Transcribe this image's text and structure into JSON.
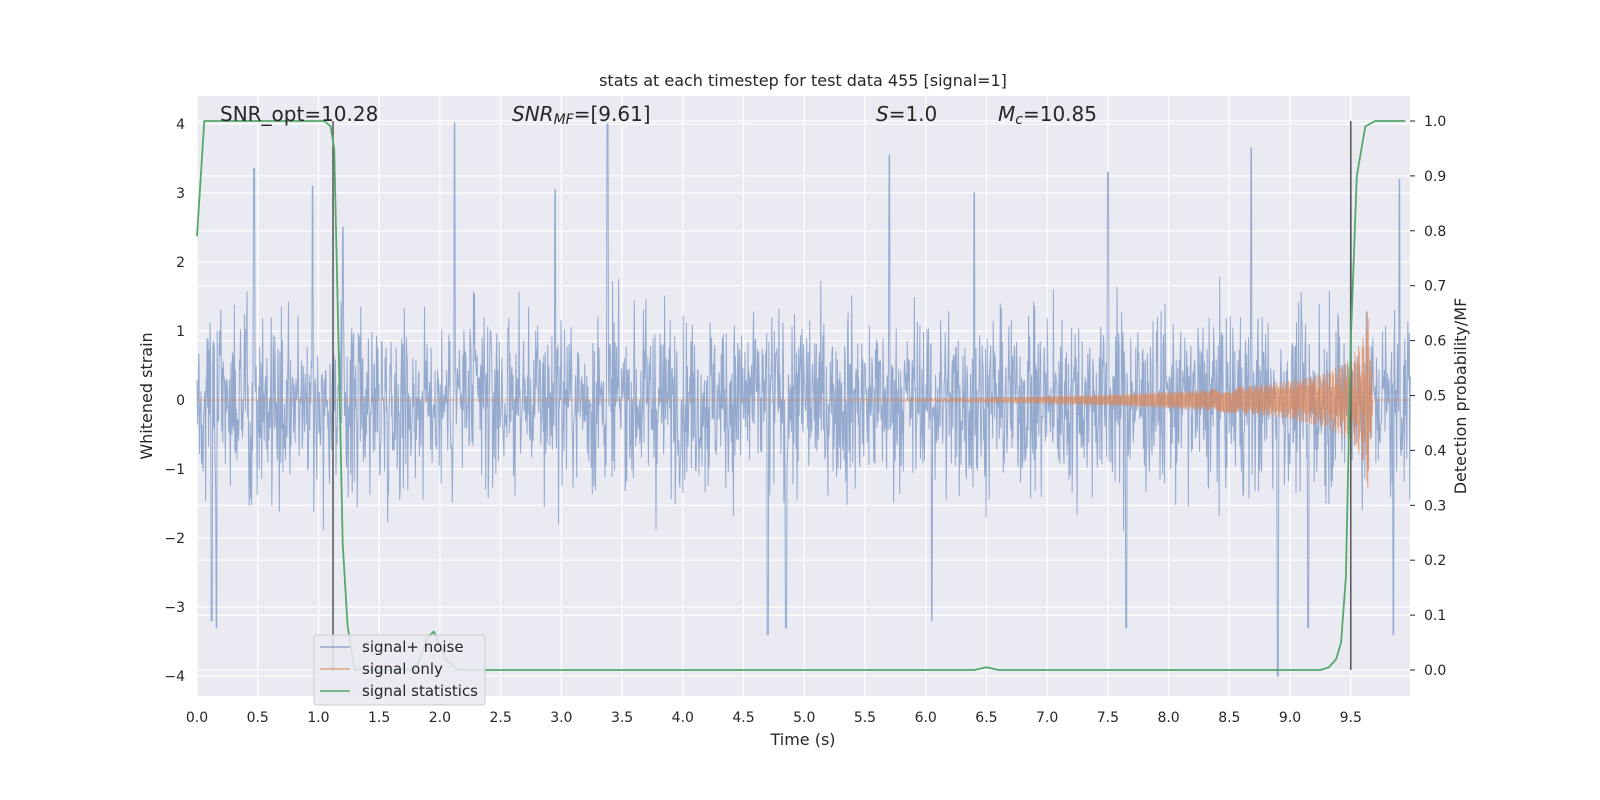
{
  "chart_data": {
    "type": "line",
    "title": "stats at each timestep for test data 455 [signal=1]",
    "xlabel": "Time (s)",
    "ylabel_left": "Whitened strain",
    "ylabel_right": "Detection probability/MF",
    "xlim": [
      0.0,
      10.0
    ],
    "ylim_left": [
      -4.3,
      4.4
    ],
    "ylim_right": [
      0.0,
      1.0
    ],
    "x_ticks": [
      "0.0",
      "0.5",
      "1.0",
      "1.5",
      "2.0",
      "2.5",
      "3.0",
      "3.5",
      "4.0",
      "4.5",
      "5.0",
      "5.5",
      "6.0",
      "6.5",
      "7.0",
      "7.5",
      "8.0",
      "8.5",
      "9.0",
      "9.5"
    ],
    "y_ticks_left": [
      "4",
      "3",
      "2",
      "1",
      "0",
      "−1",
      "−2",
      "−3",
      "−4"
    ],
    "y_ticks_right": [
      "1.0",
      "0.9",
      "0.8",
      "0.7",
      "0.6",
      "0.5",
      "0.4",
      "0.3",
      "0.2",
      "0.1",
      "0.0"
    ],
    "grid": true,
    "legend": {
      "placement": "lower-left",
      "entries": [
        "signal+ noise",
        "signal only",
        "signal statistics"
      ]
    },
    "annotations": {
      "snr_opt": "SNR_opt=10.28",
      "snr_mf_symbol": "SNR",
      "snr_mf_sub": "MF",
      "snr_mf_value": "=[9.61]",
      "s_symbol": "S",
      "s_value": "=1.0",
      "mc_symbol": "M",
      "mc_sub": "c",
      "mc_value": "=10.85"
    },
    "vertical_lines_x": [
      1.12,
      9.5
    ],
    "series": [
      {
        "name": "signal+ noise",
        "color": "#4c72b0",
        "axis": "left",
        "description_values": "noise band approx ±1.6 with peaks up to 4.0 and down to -4.0",
        "band": [
          -1.6,
          1.65
        ],
        "peaks": [
          [
            0.47,
            3.35
          ],
          [
            0.95,
            3.1
          ],
          [
            1.2,
            2.5
          ],
          [
            2.12,
            4.02
          ],
          [
            2.95,
            3.05
          ],
          [
            3.38,
            4.0
          ],
          [
            5.7,
            3.55
          ],
          [
            6.4,
            3.0
          ],
          [
            7.5,
            3.3
          ],
          [
            8.68,
            3.65
          ],
          [
            9.5,
            3.42
          ],
          [
            9.9,
            3.2
          ]
        ],
        "troughs": [
          [
            0.12,
            -3.2
          ],
          [
            0.16,
            -3.3
          ],
          [
            4.7,
            -3.4
          ],
          [
            4.85,
            -3.3
          ],
          [
            6.05,
            -3.2
          ],
          [
            7.65,
            -3.3
          ],
          [
            8.9,
            -4.0
          ],
          [
            9.15,
            -3.3
          ],
          [
            9.85,
            -3.4
          ]
        ]
      },
      {
        "name": "signal only",
        "color": "#dd8452",
        "axis": "left",
        "envelope": [
          [
            5.0,
            0.0
          ],
          [
            6.5,
            0.03
          ],
          [
            7.5,
            0.08
          ],
          [
            8.3,
            0.15
          ],
          [
            8.9,
            0.25
          ],
          [
            9.3,
            0.4
          ],
          [
            9.5,
            0.6
          ],
          [
            9.6,
            0.9
          ],
          [
            9.66,
            1.5
          ],
          [
            9.68,
            0.0
          ]
        ]
      },
      {
        "name": "signal statistics",
        "color": "#55a868",
        "axis": "right",
        "x": [
          0.0,
          0.06,
          0.12,
          0.2,
          0.4,
          0.6,
          0.8,
          1.0,
          1.05,
          1.1,
          1.13,
          1.17,
          1.2,
          1.24,
          1.3,
          1.5,
          1.8,
          1.9,
          1.95,
          2.05,
          2.15,
          2.3,
          3.0,
          4.0,
          5.0,
          6.0,
          6.4,
          6.5,
          6.6,
          7.0,
          8.0,
          9.0,
          9.25,
          9.32,
          9.38,
          9.42,
          9.46,
          9.5,
          9.55,
          9.62,
          9.7,
          9.8,
          9.95
        ],
        "y": [
          0.79,
          1.0,
          1.0,
          1.0,
          1.0,
          1.0,
          1.0,
          1.0,
          1.0,
          0.99,
          0.95,
          0.55,
          0.23,
          0.08,
          0.0,
          0.0,
          0.0,
          0.06,
          0.07,
          0.02,
          0.0,
          0.0,
          0.0,
          0.0,
          0.0,
          0.0,
          0.0,
          0.005,
          0.0,
          0.0,
          0.0,
          0.0,
          0.0,
          0.005,
          0.02,
          0.05,
          0.17,
          0.6,
          0.9,
          0.99,
          1.0,
          1.0,
          1.0
        ]
      }
    ]
  }
}
